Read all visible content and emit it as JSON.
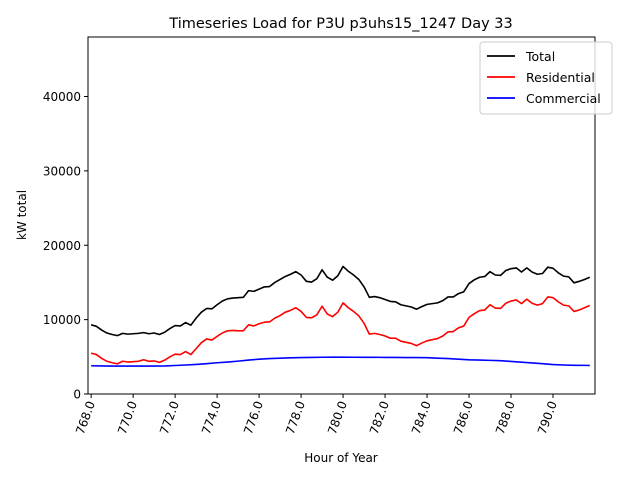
{
  "chart_data": {
    "type": "line",
    "title": "Timeseries Load for P3U p3uhs15_1247  Day 33",
    "xlabel": "Hour of Year",
    "ylabel": "kW total",
    "xlim": [
      767.85,
      792.0
    ],
    "ylim": [
      0,
      48000
    ],
    "x_ticks": [
      768,
      770,
      772,
      774,
      776,
      778,
      780,
      782,
      784,
      786,
      788,
      790
    ],
    "x_tick_labels": [
      "768.0",
      "770.0",
      "772.0",
      "774.0",
      "776.0",
      "778.0",
      "780.0",
      "782.0",
      "784.0",
      "786.0",
      "788.0",
      "790.0"
    ],
    "y_ticks": [
      0,
      10000,
      20000,
      30000,
      40000
    ],
    "y_tick_labels": [
      "0",
      "10000",
      "20000",
      "30000",
      "40000"
    ],
    "legend_position": "top-right",
    "grid": false,
    "series": [
      {
        "name": "Total",
        "color": "#000000",
        "points": [
          [
            768.0,
            9300
          ],
          [
            768.25,
            9100
          ],
          [
            768.5,
            8600
          ],
          [
            768.75,
            8200
          ],
          [
            769.0,
            8000
          ],
          [
            769.25,
            7850
          ],
          [
            769.5,
            8150
          ],
          [
            769.75,
            8050
          ],
          [
            770.0,
            8100
          ],
          [
            770.25,
            8150
          ],
          [
            770.5,
            8250
          ],
          [
            770.75,
            8100
          ],
          [
            771.0,
            8200
          ],
          [
            771.25,
            8000
          ],
          [
            771.5,
            8300
          ],
          [
            771.75,
            8800
          ],
          [
            772.0,
            9200
          ],
          [
            772.25,
            9150
          ],
          [
            772.5,
            9600
          ],
          [
            772.75,
            9250
          ],
          [
            773.0,
            10200
          ],
          [
            773.25,
            11000
          ],
          [
            773.5,
            11500
          ],
          [
            773.75,
            11450
          ],
          [
            774.0,
            12000
          ],
          [
            774.25,
            12500
          ],
          [
            774.5,
            12800
          ],
          [
            774.75,
            12900
          ],
          [
            775.0,
            12950
          ],
          [
            775.25,
            13000
          ],
          [
            775.5,
            13900
          ],
          [
            775.75,
            13800
          ],
          [
            776.0,
            14100
          ],
          [
            776.25,
            14400
          ],
          [
            776.5,
            14450
          ],
          [
            776.75,
            15000
          ],
          [
            777.0,
            15400
          ],
          [
            777.25,
            15800
          ],
          [
            777.5,
            16100
          ],
          [
            777.75,
            16450
          ],
          [
            778.0,
            16000
          ],
          [
            778.25,
            15150
          ],
          [
            778.5,
            15050
          ],
          [
            778.75,
            15500
          ],
          [
            779.0,
            16700
          ],
          [
            779.25,
            15700
          ],
          [
            779.5,
            15300
          ],
          [
            779.75,
            15900
          ],
          [
            780.0,
            17150
          ],
          [
            780.25,
            16500
          ],
          [
            780.5,
            16000
          ],
          [
            780.75,
            15400
          ],
          [
            781.0,
            14400
          ],
          [
            781.25,
            13000
          ],
          [
            781.5,
            13100
          ],
          [
            781.75,
            12950
          ],
          [
            782.0,
            12700
          ],
          [
            782.25,
            12450
          ],
          [
            782.5,
            12400
          ],
          [
            782.75,
            12000
          ],
          [
            783.0,
            11850
          ],
          [
            783.25,
            11700
          ],
          [
            783.5,
            11400
          ],
          [
            783.75,
            11750
          ],
          [
            784.0,
            12050
          ],
          [
            784.25,
            12150
          ],
          [
            784.5,
            12250
          ],
          [
            784.75,
            12550
          ],
          [
            785.0,
            13050
          ],
          [
            785.25,
            13050
          ],
          [
            785.5,
            13500
          ],
          [
            785.75,
            13750
          ],
          [
            786.0,
            14850
          ],
          [
            786.25,
            15350
          ],
          [
            786.5,
            15700
          ],
          [
            786.75,
            15800
          ],
          [
            787.0,
            16450
          ],
          [
            787.25,
            16000
          ],
          [
            787.5,
            15950
          ],
          [
            787.75,
            16600
          ],
          [
            788.0,
            16850
          ],
          [
            788.25,
            16950
          ],
          [
            788.5,
            16400
          ],
          [
            788.75,
            16950
          ],
          [
            789.0,
            16400
          ],
          [
            789.25,
            16100
          ],
          [
            789.5,
            16200
          ],
          [
            789.75,
            17050
          ],
          [
            790.0,
            16900
          ],
          [
            790.25,
            16300
          ],
          [
            790.5,
            15850
          ],
          [
            790.75,
            15750
          ],
          [
            791.0,
            14950
          ],
          [
            791.25,
            15150
          ],
          [
            791.5,
            15400
          ],
          [
            791.75,
            15700
          ]
        ]
      },
      {
        "name": "Residential",
        "color": "#ff0000",
        "points": [
          [
            768.0,
            5500
          ],
          [
            768.25,
            5300
          ],
          [
            768.5,
            4800
          ],
          [
            768.75,
            4400
          ],
          [
            769.0,
            4200
          ],
          [
            769.25,
            4050
          ],
          [
            769.5,
            4400
          ],
          [
            769.75,
            4300
          ],
          [
            770.0,
            4350
          ],
          [
            770.25,
            4400
          ],
          [
            770.5,
            4600
          ],
          [
            770.75,
            4400
          ],
          [
            771.0,
            4450
          ],
          [
            771.25,
            4250
          ],
          [
            771.5,
            4550
          ],
          [
            771.75,
            5000
          ],
          [
            772.0,
            5350
          ],
          [
            772.25,
            5300
          ],
          [
            772.5,
            5700
          ],
          [
            772.75,
            5300
          ],
          [
            773.0,
            6100
          ],
          [
            773.25,
            6900
          ],
          [
            773.5,
            7400
          ],
          [
            773.75,
            7250
          ],
          [
            774.0,
            7750
          ],
          [
            774.25,
            8200
          ],
          [
            774.5,
            8500
          ],
          [
            774.75,
            8550
          ],
          [
            775.0,
            8500
          ],
          [
            775.25,
            8500
          ],
          [
            775.5,
            9300
          ],
          [
            775.75,
            9150
          ],
          [
            776.0,
            9450
          ],
          [
            776.25,
            9650
          ],
          [
            776.5,
            9700
          ],
          [
            776.75,
            10200
          ],
          [
            777.0,
            10550
          ],
          [
            777.25,
            11000
          ],
          [
            777.5,
            11250
          ],
          [
            777.75,
            11600
          ],
          [
            778.0,
            11100
          ],
          [
            778.25,
            10300
          ],
          [
            778.5,
            10250
          ],
          [
            778.75,
            10650
          ],
          [
            779.0,
            11800
          ],
          [
            779.25,
            10750
          ],
          [
            779.5,
            10400
          ],
          [
            779.75,
            11000
          ],
          [
            780.0,
            12250
          ],
          [
            780.25,
            11600
          ],
          [
            780.5,
            11100
          ],
          [
            780.75,
            10500
          ],
          [
            781.0,
            9500
          ],
          [
            781.25,
            8050
          ],
          [
            781.5,
            8150
          ],
          [
            781.75,
            8000
          ],
          [
            782.0,
            7800
          ],
          [
            782.25,
            7500
          ],
          [
            782.5,
            7500
          ],
          [
            782.75,
            7100
          ],
          [
            783.0,
            6950
          ],
          [
            783.25,
            6800
          ],
          [
            783.5,
            6500
          ],
          [
            783.75,
            6850
          ],
          [
            784.0,
            7150
          ],
          [
            784.25,
            7300
          ],
          [
            784.5,
            7450
          ],
          [
            784.75,
            7800
          ],
          [
            785.0,
            8350
          ],
          [
            785.25,
            8400
          ],
          [
            785.5,
            8900
          ],
          [
            785.75,
            9150
          ],
          [
            786.0,
            10300
          ],
          [
            786.25,
            10800
          ],
          [
            786.5,
            11200
          ],
          [
            786.75,
            11300
          ],
          [
            787.0,
            12000
          ],
          [
            787.25,
            11550
          ],
          [
            787.5,
            11500
          ],
          [
            787.75,
            12200
          ],
          [
            788.0,
            12500
          ],
          [
            788.25,
            12650
          ],
          [
            788.5,
            12150
          ],
          [
            788.75,
            12750
          ],
          [
            789.0,
            12200
          ],
          [
            789.25,
            11950
          ],
          [
            789.5,
            12150
          ],
          [
            789.75,
            13050
          ],
          [
            790.0,
            12950
          ],
          [
            790.25,
            12400
          ],
          [
            790.5,
            11950
          ],
          [
            790.75,
            11850
          ],
          [
            791.0,
            11100
          ],
          [
            791.25,
            11300
          ],
          [
            791.5,
            11600
          ],
          [
            791.75,
            11900
          ]
        ]
      },
      {
        "name": "Commercial",
        "color": "#0000ff",
        "points": [
          [
            768.0,
            3800
          ],
          [
            768.5,
            3780
          ],
          [
            769.0,
            3760
          ],
          [
            769.5,
            3760
          ],
          [
            770.0,
            3760
          ],
          [
            770.5,
            3760
          ],
          [
            771.0,
            3760
          ],
          [
            771.5,
            3780
          ],
          [
            772.0,
            3830
          ],
          [
            772.5,
            3900
          ],
          [
            773.0,
            3980
          ],
          [
            773.5,
            4080
          ],
          [
            774.0,
            4200
          ],
          [
            774.5,
            4300
          ],
          [
            775.0,
            4420
          ],
          [
            775.5,
            4560
          ],
          [
            776.0,
            4680
          ],
          [
            776.5,
            4760
          ],
          [
            777.0,
            4820
          ],
          [
            777.5,
            4870
          ],
          [
            778.0,
            4900
          ],
          [
            778.5,
            4920
          ],
          [
            779.0,
            4940
          ],
          [
            779.5,
            4950
          ],
          [
            780.0,
            4950
          ],
          [
            780.5,
            4940
          ],
          [
            781.0,
            4930
          ],
          [
            781.5,
            4930
          ],
          [
            782.0,
            4920
          ],
          [
            782.5,
            4910
          ],
          [
            783.0,
            4900
          ],
          [
            783.5,
            4900
          ],
          [
            784.0,
            4880
          ],
          [
            784.5,
            4820
          ],
          [
            785.0,
            4760
          ],
          [
            785.5,
            4680
          ],
          [
            786.0,
            4600
          ],
          [
            786.5,
            4560
          ],
          [
            787.0,
            4520
          ],
          [
            787.5,
            4480
          ],
          [
            788.0,
            4380
          ],
          [
            788.5,
            4280
          ],
          [
            789.0,
            4180
          ],
          [
            789.5,
            4080
          ],
          [
            790.0,
            3960
          ],
          [
            790.5,
            3900
          ],
          [
            791.0,
            3860
          ],
          [
            791.5,
            3850
          ],
          [
            791.75,
            3840
          ]
        ]
      }
    ]
  }
}
